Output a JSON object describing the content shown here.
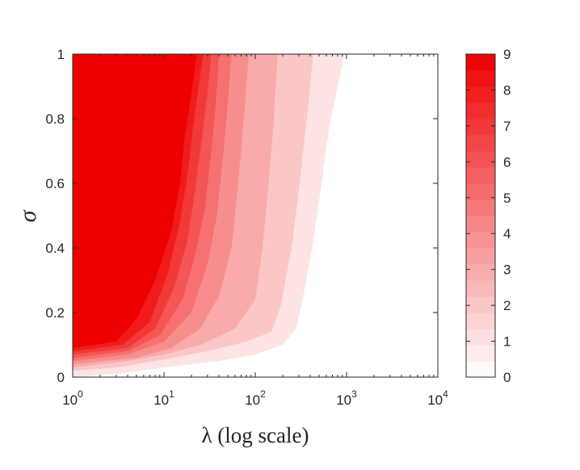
{
  "chart_data": {
    "type": "heatmap",
    "subtype": "filled-contour",
    "title": "",
    "xlabel": "λ (log scale)",
    "ylabel": "σ",
    "x_scale": "log",
    "xlim": [
      1,
      10000
    ],
    "ylim": [
      0,
      1
    ],
    "x_ticks": [
      {
        "value": 1,
        "base": "10",
        "exp": "0"
      },
      {
        "value": 10,
        "base": "10",
        "exp": "1"
      },
      {
        "value": 100,
        "base": "10",
        "exp": "2"
      },
      {
        "value": 1000,
        "base": "10",
        "exp": "3"
      },
      {
        "value": 10000,
        "base": "10",
        "exp": "4"
      }
    ],
    "y_ticks": [
      "0",
      "0.2",
      "0.4",
      "0.6",
      "0.8",
      "1"
    ],
    "colorbar": {
      "range": [
        0,
        9
      ],
      "ticks": [
        "0",
        "1",
        "2",
        "3",
        "4",
        "5",
        "6",
        "7",
        "8",
        "9"
      ],
      "low_color": "#ffffff",
      "high_color": "#ee0000",
      "levels": 20
    },
    "grid": false,
    "accent_color": "#ee0000",
    "contour_boundaries": [
      {
        "level": 0.5,
        "points": [
          [
            1,
            0.0
          ],
          [
            3,
            0.01
          ],
          [
            10,
            0.03
          ],
          [
            40,
            0.05
          ],
          [
            100,
            0.07
          ],
          [
            200,
            0.1
          ],
          [
            280,
            0.15
          ],
          [
            320,
            0.22
          ],
          [
            420,
            0.4
          ],
          [
            520,
            0.58
          ],
          [
            650,
            0.78
          ],
          [
            800,
            0.9
          ],
          [
            950,
            1.0
          ]
        ]
      },
      {
        "level": 1.5,
        "points": [
          [
            1,
            0.02
          ],
          [
            3,
            0.03
          ],
          [
            8,
            0.05
          ],
          [
            30,
            0.08
          ],
          [
            80,
            0.11
          ],
          [
            150,
            0.14
          ],
          [
            190,
            0.22
          ],
          [
            250,
            0.4
          ],
          [
            300,
            0.58
          ],
          [
            360,
            0.78
          ],
          [
            400,
            0.9
          ],
          [
            430,
            1.0
          ]
        ]
      },
      {
        "level": 2.5,
        "points": [
          [
            1,
            0.03
          ],
          [
            4,
            0.05
          ],
          [
            10,
            0.07
          ],
          [
            25,
            0.1
          ],
          [
            60,
            0.15
          ],
          [
            100,
            0.24
          ],
          [
            120,
            0.4
          ],
          [
            140,
            0.6
          ],
          [
            160,
            0.8
          ],
          [
            175,
            1.0
          ]
        ]
      },
      {
        "level": 3.5,
        "points": [
          [
            1,
            0.04
          ],
          [
            5,
            0.06
          ],
          [
            12,
            0.09
          ],
          [
            25,
            0.15
          ],
          [
            40,
            0.25
          ],
          [
            55,
            0.4
          ],
          [
            65,
            0.6
          ],
          [
            75,
            0.8
          ],
          [
            85,
            1.0
          ]
        ]
      },
      {
        "level": 4.5,
        "points": [
          [
            1,
            0.05
          ],
          [
            4,
            0.07
          ],
          [
            10,
            0.11
          ],
          [
            20,
            0.2
          ],
          [
            30,
            0.35
          ],
          [
            38,
            0.5
          ],
          [
            45,
            0.7
          ],
          [
            50,
            0.85
          ],
          [
            55,
            1.0
          ]
        ]
      },
      {
        "level": 5.5,
        "points": [
          [
            1,
            0.06
          ],
          [
            4,
            0.08
          ],
          [
            9,
            0.13
          ],
          [
            16,
            0.24
          ],
          [
            22,
            0.38
          ],
          [
            28,
            0.52
          ],
          [
            33,
            0.7
          ],
          [
            37,
            0.85
          ],
          [
            40,
            1.0
          ]
        ]
      },
      {
        "level": 6.5,
        "points": [
          [
            1,
            0.07
          ],
          [
            4,
            0.09
          ],
          [
            8,
            0.15
          ],
          [
            13,
            0.28
          ],
          [
            18,
            0.42
          ],
          [
            22,
            0.58
          ],
          [
            26,
            0.74
          ],
          [
            30,
            0.88
          ],
          [
            33,
            1.0
          ]
        ]
      },
      {
        "level": 7.5,
        "points": [
          [
            1,
            0.08
          ],
          [
            3.5,
            0.1
          ],
          [
            7,
            0.17
          ],
          [
            11,
            0.32
          ],
          [
            15,
            0.48
          ],
          [
            18,
            0.62
          ],
          [
            21,
            0.78
          ],
          [
            24,
            0.9
          ],
          [
            27,
            1.0
          ]
        ]
      },
      {
        "level": 8.5,
        "points": [
          [
            1,
            0.09
          ],
          [
            3,
            0.11
          ],
          [
            5,
            0.18
          ],
          [
            8,
            0.3
          ],
          [
            12,
            0.45
          ],
          [
            15,
            0.6
          ],
          [
            17,
            0.75
          ],
          [
            20,
            0.88
          ],
          [
            23,
            1.0
          ]
        ]
      }
    ]
  }
}
